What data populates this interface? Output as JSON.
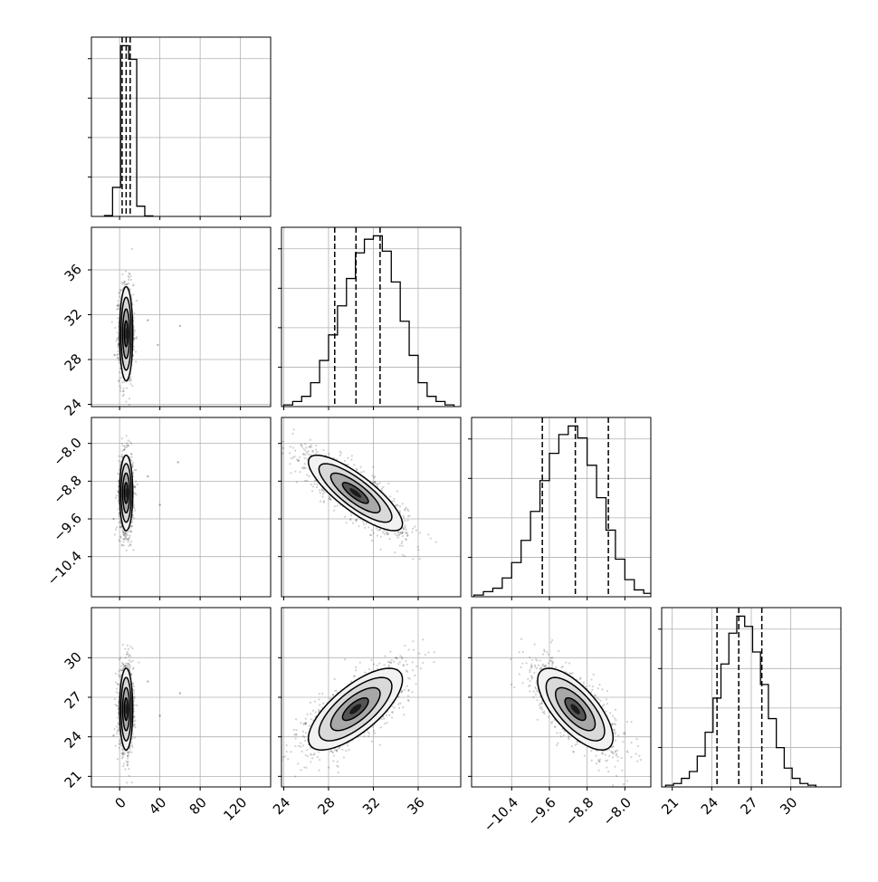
{
  "chart_data": {
    "type": "corner",
    "grid": true,
    "quantiles": [
      0.16,
      0.5,
      0.84
    ],
    "params": [
      {
        "range": [
          -28,
          150
        ],
        "ticks": [
          0,
          40,
          80,
          120
        ],
        "tick_labels": [
          "0",
          "40",
          "80",
          "120"
        ]
      },
      {
        "range": [
          23.8,
          39.8
        ],
        "ticks": [
          24,
          28,
          32,
          36
        ],
        "tick_labels": [
          "24",
          "28",
          "32",
          "36"
        ]
      },
      {
        "range": [
          -11.25,
          -7.45
        ],
        "ticks": [
          -10.4,
          -9.6,
          -8.8,
          -8.0
        ],
        "tick_labels": [
          "−10.4",
          "−9.6",
          "−8.8",
          "−8.0"
        ]
      },
      {
        "range": [
          20.2,
          33.8
        ],
        "ticks": [
          21,
          24,
          27,
          30
        ],
        "tick_labels": [
          "21",
          "24",
          "27",
          "30"
        ]
      }
    ],
    "histograms": [
      {
        "param": 0,
        "bins": [
          -15,
          -7,
          1,
          9,
          17,
          25,
          33
        ],
        "counts": [
          0.005,
          0.17,
          1.0,
          0.92,
          0.06,
          0.003
        ],
        "quantile_values": [
          2.5,
          6.5,
          10.5
        ]
      },
      {
        "param": 1,
        "bins": [
          24,
          24.8,
          25.6,
          26.4,
          27.2,
          28.0,
          28.8,
          29.6,
          30.4,
          31.2,
          32.0,
          32.8,
          33.6,
          34.4,
          35.2,
          36.0,
          36.8,
          37.6,
          38.4,
          39.2
        ],
        "counts": [
          0.01,
          0.03,
          0.06,
          0.14,
          0.27,
          0.42,
          0.59,
          0.75,
          0.9,
          0.98,
          1.0,
          0.91,
          0.73,
          0.5,
          0.3,
          0.14,
          0.06,
          0.03,
          0.01
        ],
        "quantile_values": [
          28.55,
          30.45,
          32.6
        ]
      },
      {
        "param": 2,
        "bins": [
          -11.2,
          -11.0,
          -10.8,
          -10.6,
          -10.4,
          -10.2,
          -10.0,
          -9.8,
          -9.6,
          -9.4,
          -9.2,
          -9.0,
          -8.8,
          -8.6,
          -8.4,
          -8.2,
          -8.0,
          -7.8,
          -7.6,
          -7.4
        ],
        "counts": [
          0.01,
          0.03,
          0.05,
          0.11,
          0.2,
          0.33,
          0.5,
          0.68,
          0.84,
          0.95,
          1.0,
          0.93,
          0.77,
          0.58,
          0.39,
          0.22,
          0.1,
          0.04,
          0.02
        ],
        "quantile_values": [
          -9.75,
          -9.05,
          -8.35
        ]
      },
      {
        "param": 3,
        "bins": [
          20.5,
          21.1,
          21.7,
          22.3,
          22.9,
          23.5,
          24.1,
          24.7,
          25.3,
          25.9,
          26.5,
          27.1,
          27.7,
          28.3,
          28.9,
          29.5,
          30.1,
          30.7,
          31.3,
          31.9
        ],
        "counts": [
          0.01,
          0.02,
          0.05,
          0.09,
          0.18,
          0.32,
          0.52,
          0.72,
          0.9,
          1.0,
          0.94,
          0.79,
          0.6,
          0.4,
          0.23,
          0.11,
          0.05,
          0.02,
          0.01
        ],
        "quantile_values": [
          24.4,
          26.05,
          27.8
        ]
      }
    ],
    "scatter_panels": [
      {
        "row": 1,
        "col": 0,
        "center": [
          6.5,
          30.3
        ],
        "sigma": [
          3.3,
          2.1
        ],
        "rho": 0.0,
        "n_points": 1100,
        "outliers": [
          [
            28,
            31.5
          ],
          [
            60,
            31
          ],
          [
            38,
            29.3
          ],
          [
            -5,
            28.4
          ]
        ]
      },
      {
        "row": 2,
        "col": 0,
        "center": [
          6.5,
          -9.05
        ],
        "sigma": [
          3.3,
          0.4
        ],
        "rho": 0.0,
        "n_points": 1100,
        "outliers": [
          [
            28,
            -8.7
          ],
          [
            58,
            -8.4
          ],
          [
            40,
            -9.3
          ],
          [
            -6,
            -9.6
          ]
        ]
      },
      {
        "row": 3,
        "col": 0,
        "center": [
          6.5,
          26.1
        ],
        "sigma": [
          3.3,
          1.55
        ],
        "rho": 0.0,
        "n_points": 1100,
        "outliers": [
          [
            28,
            28.2
          ],
          [
            60,
            27.3
          ],
          [
            40,
            25.6
          ],
          [
            -6,
            24.1
          ]
        ]
      },
      {
        "row": 2,
        "col": 1,
        "center": [
          30.4,
          -9.05
        ],
        "sigma": [
          2.1,
          0.4
        ],
        "rho": -0.82,
        "n_points": 1500,
        "outliers": []
      },
      {
        "row": 3,
        "col": 1,
        "center": [
          30.4,
          26.1
        ],
        "sigma": [
          2.1,
          1.55
        ],
        "rho": 0.72,
        "n_points": 1500,
        "outliers": []
      },
      {
        "row": 3,
        "col": 2,
        "center": [
          -9.05,
          26.1
        ],
        "sigma": [
          0.4,
          1.55
        ],
        "rho": -0.7,
        "n_points": 1500,
        "outliers": []
      }
    ]
  }
}
